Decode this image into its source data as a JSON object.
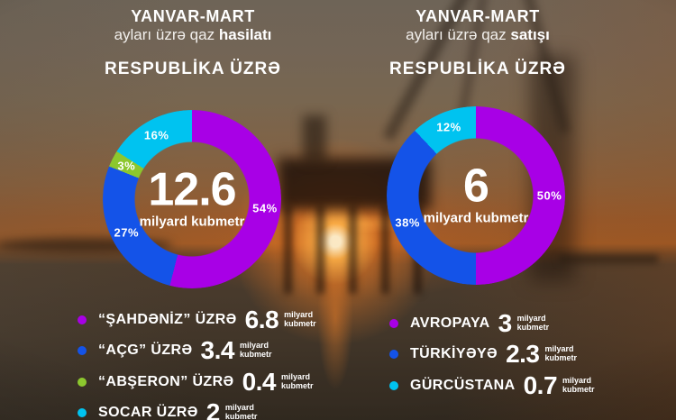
{
  "colors": {
    "purple": "#a800e6",
    "blue": "#1453e8",
    "green": "#8cc72e",
    "cyan": "#00c3f0",
    "text": "#ffffff"
  },
  "background": {
    "scene": "blurred sunset photo of offshore oil rig over the sea"
  },
  "chart_data": [
    {
      "type": "pie",
      "donut": true,
      "title_line1": "YANVAR-MART",
      "title_line2": "ayları üzrə qaz ",
      "title_line2_bold": "hasilatı",
      "subtitle": "RESPUBLİKA ÜZRƏ",
      "center_value": "12.6",
      "center_unit": "milyard kubmetr",
      "total": 12.6,
      "legend_position": "bottom",
      "segments": [
        {
          "label": "“ŞAHDƏNİZ” ÜZRƏ",
          "percent": 54,
          "value": "6.8",
          "unit": "milyard kubmetr",
          "color": "#a800e6"
        },
        {
          "label": "“AÇG” ÜZRƏ",
          "percent": 27,
          "value": "3.4",
          "unit": "milyard kubmetr",
          "color": "#1453e8"
        },
        {
          "label": "“ABŞERON” ÜZRƏ",
          "percent": 3,
          "value": "0.4",
          "unit": "milyard kubmetr",
          "color": "#8cc72e"
        },
        {
          "label": "SOCAR ÜZRƏ",
          "percent": 16,
          "value": "2",
          "unit": "milyard kubmetr",
          "color": "#00c3f0"
        }
      ]
    },
    {
      "type": "pie",
      "donut": true,
      "title_line1": "YANVAR-MART",
      "title_line2": "ayları üzrə qaz ",
      "title_line2_bold": "satışı",
      "subtitle": "RESPUBLİKA ÜZRƏ",
      "center_value": "6",
      "center_unit": "milyard kubmetr",
      "total": 6,
      "legend_position": "bottom",
      "segments": [
        {
          "label": "AVROPAYA",
          "percent": 50,
          "value": "3",
          "unit": "milyard kubmetr",
          "color": "#a800e6"
        },
        {
          "label": "TÜRKİYƏYƏ",
          "percent": 38,
          "value": "2.3",
          "unit": "milyard kubmetr",
          "color": "#1453e8"
        },
        {
          "label": "GÜRCÜSTANA",
          "percent": 12,
          "value": "0.7",
          "unit": "milyard kubmetr",
          "color": "#00c3f0"
        }
      ]
    }
  ]
}
